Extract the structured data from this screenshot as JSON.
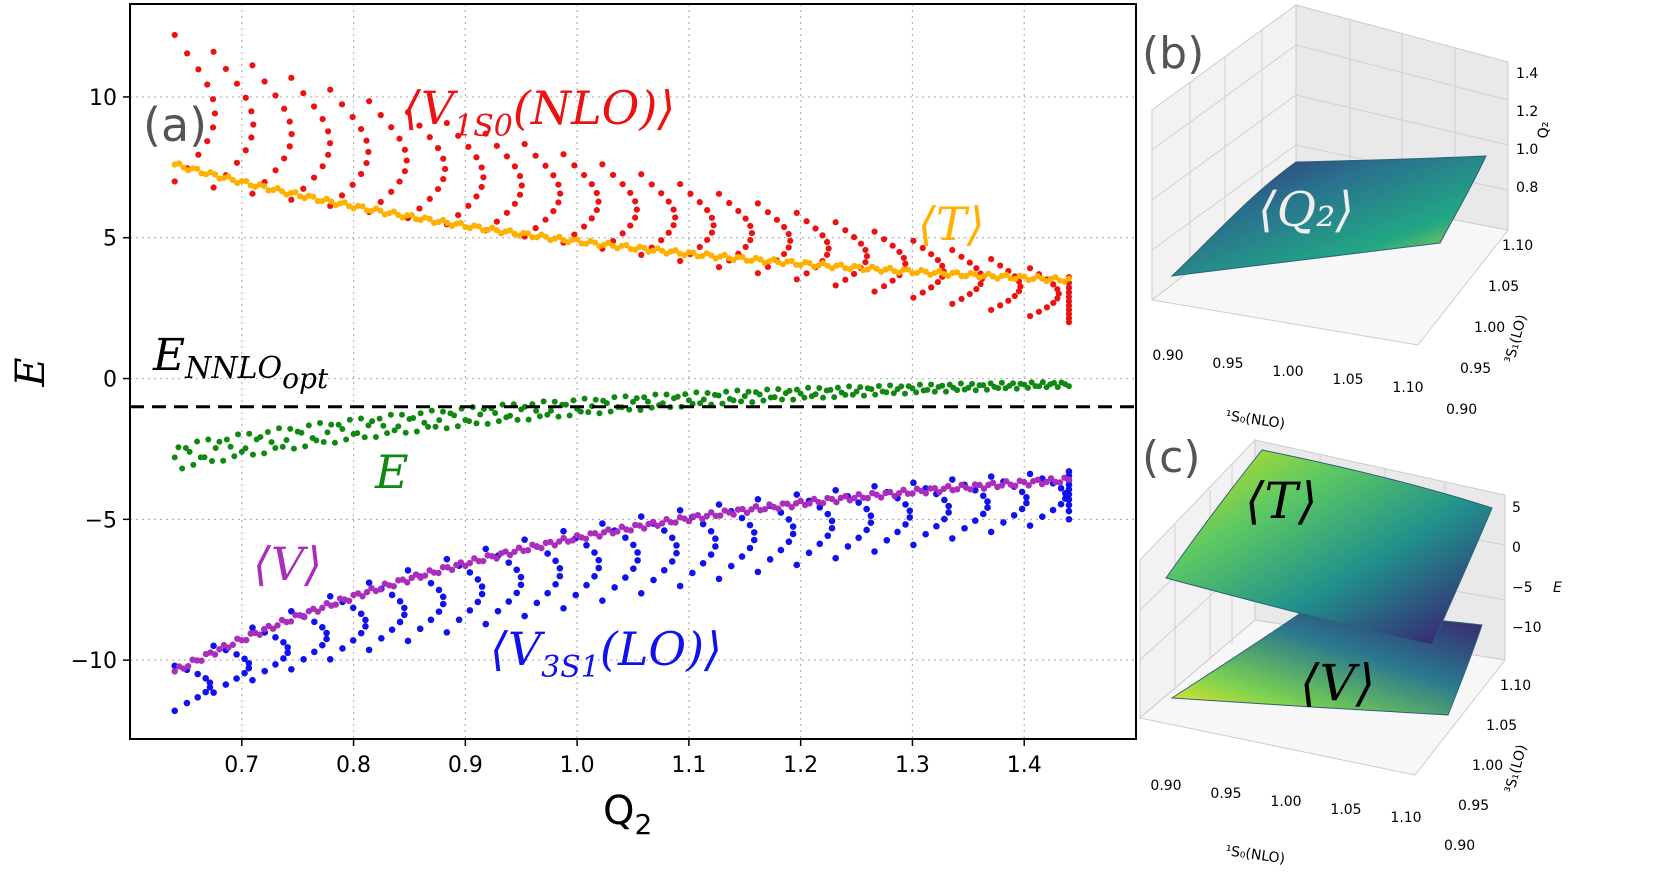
{
  "chart_data": [
    {
      "panel": "(a)",
      "type": "scatter",
      "xlabel": "Q",
      "xlabel_sub": "2",
      "ylabel": "E",
      "xlim": [
        0.6,
        1.5
      ],
      "ylim": [
        -12.8,
        13.3
      ],
      "xticks": [
        0.7,
        0.8,
        0.9,
        1.0,
        1.1,
        1.2,
        1.3,
        1.4
      ],
      "xtick_labels": [
        "0.7",
        "0.8",
        "0.9",
        "1.0",
        "1.1",
        "1.2",
        "1.3",
        "1.4"
      ],
      "yticks": [
        10,
        5,
        0,
        -5,
        -10
      ],
      "ytick_labels": [
        "10",
        "5",
        "0",
        "−5",
        "−10"
      ],
      "grid": true,
      "reference_line": {
        "y": -1.0,
        "style": "dashed",
        "color": "#000000",
        "label": "E",
        "label_sub": "NNLO",
        "label_subsub": "opt"
      },
      "series": [
        {
          "name": "⟨V1S0(NLO)⟩",
          "label_main": "⟨V",
          "label_sub": "1S0",
          "label_rest": "(NLO)⟩",
          "color": "#ee1111",
          "x_range": [
            0.64,
            1.44
          ],
          "y_top": [
            12.2,
            3.6
          ],
          "y_bottom": [
            7.0,
            2.0
          ],
          "rows": 11,
          "cols": 24
        },
        {
          "name": "⟨T⟩",
          "label_main": "⟨T⟩",
          "color": "#ffb000",
          "x_range": [
            0.64,
            1.44
          ],
          "y_start": 7.6,
          "y_end": 3.5
        },
        {
          "name": "E",
          "label_main": "E",
          "color": "#118811",
          "x_range": [
            0.64,
            1.44
          ],
          "y_start": -2.8,
          "y_end": -0.2,
          "spread": 0.45
        },
        {
          "name": "⟨V⟩",
          "label_main": "⟨V⟩",
          "color": "#aa2dbb",
          "x_range": [
            0.64,
            1.44
          ],
          "y_start": -10.4,
          "y_end": -3.6
        },
        {
          "name": "⟨V3S1(LO)⟩",
          "label_main": "⟨V",
          "label_sub": "3S1",
          "label_rest": "(LO)⟩",
          "color": "#1111ee",
          "x_range": [
            0.64,
            1.44
          ],
          "y_top": [
            -10.2,
            -3.3
          ],
          "y_bottom": [
            -11.8,
            -5.0
          ],
          "rows": 10,
          "cols": 24
        }
      ]
    },
    {
      "panel": "(b)",
      "type": "surface",
      "surface_label": "⟨Q₂⟩",
      "xlabel": "¹S₀(NLO)",
      "ylabel": "³S₁(LO)",
      "zlabel": "Q₂",
      "xticks": [
        "0.90",
        "0.95",
        "1.00",
        "1.05",
        "1.10"
      ],
      "yticks": [
        "0.90",
        "0.95",
        "1.00",
        "1.05",
        "1.10"
      ],
      "zticks": [
        "1.4",
        "1.2",
        "1.0",
        "0.8"
      ]
    },
    {
      "panel": "(c)",
      "type": "surface",
      "surface_labels": [
        "⟨T⟩",
        "⟨V⟩"
      ],
      "xlabel": "¹S₀(NLO)",
      "ylabel": "³S₁(LO)",
      "zlabel": "E",
      "xticks": [
        "0.90",
        "0.95",
        "1.00",
        "1.05",
        "1.10"
      ],
      "yticks": [
        "0.90",
        "0.95",
        "1.00",
        "1.05",
        "1.10"
      ],
      "zticks": [
        "5",
        "0",
        "−5",
        "−10"
      ]
    }
  ]
}
